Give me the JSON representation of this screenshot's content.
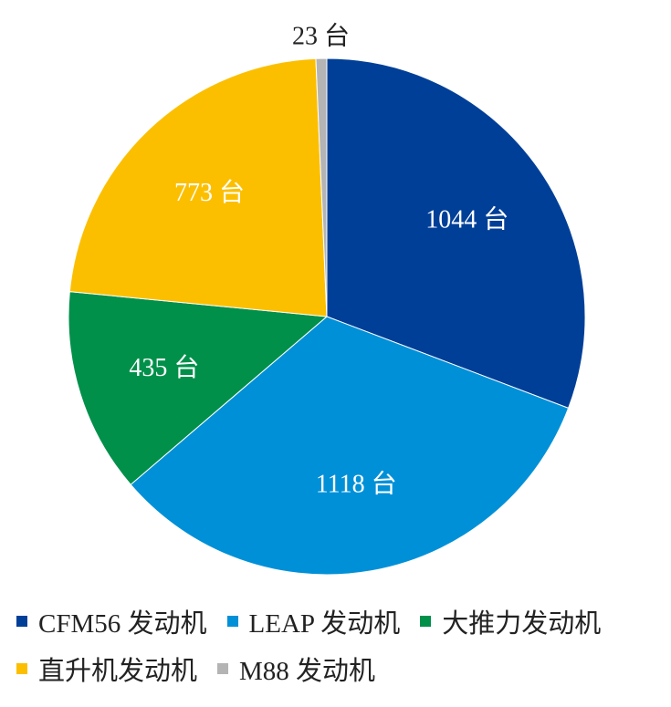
{
  "chart_data": {
    "type": "pie",
    "title": "",
    "unit": "台",
    "slices": [
      {
        "name": "CFM56 发动机",
        "value": 1044,
        "label": "1044 台",
        "color": "#003f98"
      },
      {
        "name": "LEAP 发动机",
        "value": 1118,
        "label": "1118 台",
        "color": "#0090d8"
      },
      {
        "name": "大推力发动机",
        "value": 435,
        "label": "435 台",
        "color": "#00904a"
      },
      {
        "name": "直升机发动机",
        "value": 773,
        "label": "773 台",
        "color": "#fcbf00"
      },
      {
        "name": "M88 发动机",
        "value": 23,
        "label": "23 台",
        "color": "#b4b4b4"
      }
    ],
    "legend_position": "bottom"
  }
}
